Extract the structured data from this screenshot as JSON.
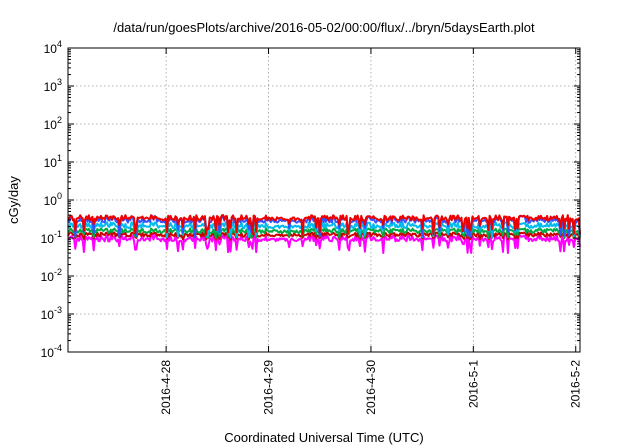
{
  "chart_data": {
    "type": "line",
    "title": "/data/run/goesPlots/archive/2016-05-02/00:00/flux/../bryn/5daysEarth.plot",
    "xlabel": "Coordinated Universal Time (UTC)",
    "ylabel": "cGy/day",
    "y_scale": "log",
    "ylim": [
      0.0001,
      10000
    ],
    "xlim": [
      "2016-04-27 01:00",
      "2016-05-02 01:00"
    ],
    "grid": true,
    "legend": "none",
    "y_ticks": [
      {
        "value": 0.0001,
        "base": "10",
        "exp": "-4"
      },
      {
        "value": 0.001,
        "base": "10",
        "exp": "-3"
      },
      {
        "value": 0.01,
        "base": "10",
        "exp": "-2"
      },
      {
        "value": 0.1,
        "base": "10",
        "exp": "-1"
      },
      {
        "value": 1,
        "base": "10",
        "exp": "0"
      },
      {
        "value": 10,
        "base": "10",
        "exp": "1"
      },
      {
        "value": 100,
        "base": "10",
        "exp": "2"
      },
      {
        "value": 1000,
        "base": "10",
        "exp": "3"
      },
      {
        "value": 10000,
        "base": "10",
        "exp": "4"
      }
    ],
    "x_ticks": [
      {
        "value": "2016-04-28",
        "label": "2016-4-28"
      },
      {
        "value": "2016-04-29",
        "label": "2016-4-29"
      },
      {
        "value": "2016-04-30",
        "label": "2016-4-30"
      },
      {
        "value": "2016-05-01",
        "label": "2016-5-1"
      },
      {
        "value": "2016-05-02",
        "label": "2016-5-2"
      }
    ],
    "series": [
      {
        "color": "#ff00ff",
        "x_range": [
          "2016-04-27 01:00",
          "2016-05-02 01:00"
        ],
        "typical": 0.09,
        "peak": 0.12,
        "dip": 0.04
      },
      {
        "color": "#cc0000",
        "x_range": [
          "2016-04-27 01:00",
          "2016-05-02 01:00"
        ],
        "typical": 0.12,
        "peak": 0.14,
        "dip": 0.09
      },
      {
        "color": "#00aa44",
        "x_range": [
          "2016-04-27 01:00",
          "2016-05-02 01:00"
        ],
        "typical": 0.15,
        "peak": 0.18,
        "dip": 0.1
      },
      {
        "color": "#00bbee",
        "x_range": [
          "2016-04-27 01:00",
          "2016-05-02 01:00"
        ],
        "typical": 0.2,
        "peak": 0.26,
        "dip": 0.1
      },
      {
        "color": "#3355ff",
        "x_range": [
          "2016-04-27 01:00",
          "2016-05-02 01:00"
        ],
        "typical": 0.28,
        "peak": 0.38,
        "dip": 0.1
      },
      {
        "color": "#ee0000",
        "x_range": [
          "2016-04-27 01:00",
          "2016-05-02 01:00"
        ],
        "typical": 0.32,
        "peak": 0.4,
        "dip": 0.12
      }
    ]
  }
}
